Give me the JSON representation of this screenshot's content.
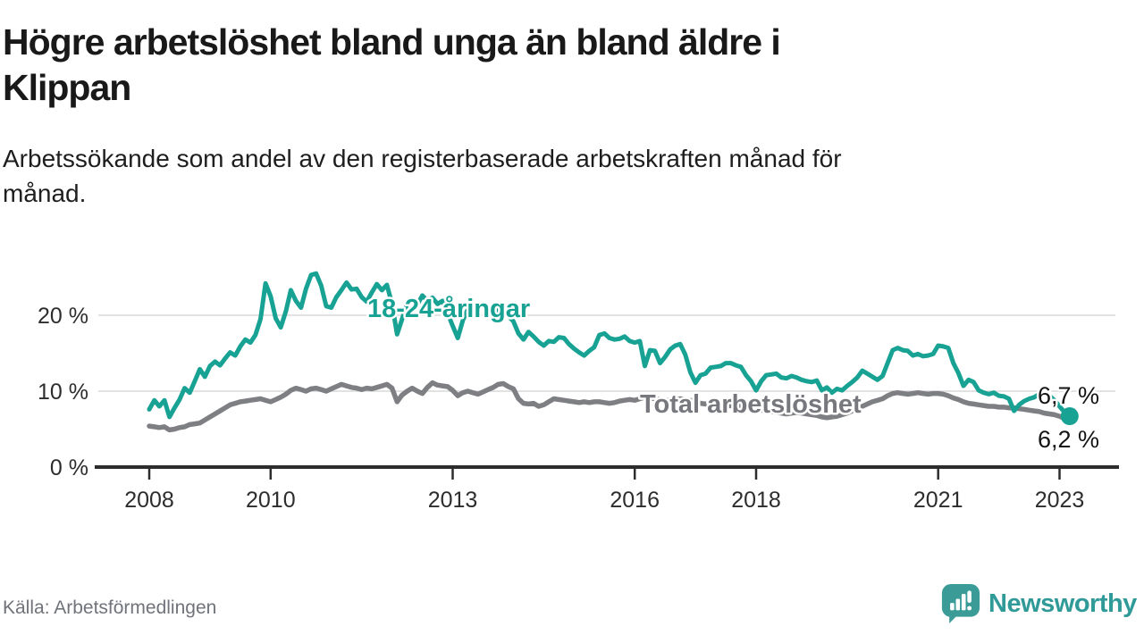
{
  "header": {
    "title": "Högre arbetslöshet bland unga än bland äldre i\nKlippan",
    "subtitle": "Arbetssökande som andel av den registerbaserade arbetskraften månad för\nmånad."
  },
  "footer": {
    "source": "Källa: Arbetsförmedlingen",
    "brand": "Newsworthy",
    "logo_icon": "newsworthy-speech-bubble-bar-chart-icon"
  },
  "colors": {
    "youth_line": "#17a294",
    "total_line": "#7e7f83",
    "total_label": "#77787d",
    "grid": "#d9d9d9",
    "axis": "#2d2d2d",
    "tick_text": "#2d2d2d",
    "end_label_text": "#141414",
    "title_text": "#191919",
    "muted_text": "#70737a",
    "brand_teal": "#2f9a98"
  },
  "chart_data": {
    "type": "line",
    "title": "Högre arbetslöshet bland unga än bland äldre i Klippan",
    "x_start": {
      "year": 2008,
      "month": 1
    },
    "frequency": "monthly",
    "x_ticks": [
      2008,
      2010,
      2013,
      2016,
      2018,
      2021,
      2023
    ],
    "y_ticks": [
      {
        "value": 0,
        "label": "0 %"
      },
      {
        "value": 10,
        "label": "10 %"
      },
      {
        "value": 20,
        "label": "20 %"
      }
    ],
    "ylim": [
      0,
      27.5
    ],
    "grid": true,
    "legend_position": "inline-labels",
    "series": [
      {
        "name": "18-24-åringar",
        "end_label": "6,7 %",
        "end_marker": true,
        "values": [
          7.6,
          8.8,
          8.0,
          8.8,
          6.6,
          7.8,
          8.9,
          10.4,
          9.8,
          11.3,
          12.9,
          11.9,
          13.3,
          13.9,
          13.4,
          14.3,
          15.1,
          14.7,
          15.9,
          16.8,
          16.4,
          17.4,
          19.5,
          24.2,
          22.5,
          19.6,
          18.4,
          20.5,
          23.3,
          21.9,
          21.0,
          23.5,
          25.3,
          25.5,
          23.9,
          21.2,
          21.0,
          22.4,
          23.3,
          24.3,
          23.4,
          23.5,
          22.4,
          21.8,
          23.0,
          24.1,
          23.3,
          24.0,
          21.5,
          17.5,
          19.5,
          21.6,
          21.9,
          21.4,
          22.6,
          21.9,
          22.3,
          21.5,
          21.9,
          20.3,
          18.6,
          17.0,
          19.3,
          20.8,
          20.4,
          21.0,
          21.3,
          20.7,
          21.2,
          20.6,
          20.9,
          19.9,
          19.2,
          17.6,
          16.8,
          17.8,
          17.2,
          16.5,
          16.0,
          16.6,
          16.5,
          17.1,
          17.0,
          16.2,
          15.6,
          15.1,
          14.7,
          15.3,
          15.8,
          17.4,
          17.6,
          17.0,
          16.8,
          16.9,
          17.2,
          16.6,
          16.4,
          16.6,
          13.3,
          15.4,
          15.3,
          13.7,
          14.5,
          15.5,
          16.0,
          16.2,
          14.8,
          12.5,
          11.1,
          12.1,
          12.3,
          13.1,
          13.2,
          13.3,
          13.7,
          13.7,
          13.4,
          13.2,
          12.1,
          11.3,
          10.1,
          11.3,
          12.1,
          12.2,
          12.3,
          11.8,
          11.7,
          12.0,
          11.8,
          11.5,
          11.3,
          11.2,
          11.4,
          10.1,
          10.5,
          9.8,
          10.3,
          10.1,
          10.7,
          11.2,
          11.8,
          12.7,
          12.3,
          11.9,
          11.5,
          12.0,
          13.7,
          15.4,
          15.7,
          15.4,
          15.3,
          14.7,
          14.9,
          14.6,
          14.7,
          14.9,
          16.0,
          15.9,
          15.7,
          13.7,
          12.4,
          10.7,
          11.5,
          11.2,
          10.1,
          9.8,
          9.6,
          9.8,
          9.4,
          9.3,
          9.0,
          7.4,
          8.2,
          8.7,
          9.0,
          9.2,
          9.6,
          9.9,
          9.4,
          8.8,
          8.0,
          7.2,
          6.7
        ]
      },
      {
        "name": "Total arbetslöshet",
        "end_label": "6,2 %",
        "end_marker": false,
        "values": [
          5.4,
          5.3,
          5.2,
          5.3,
          4.9,
          5.0,
          5.2,
          5.3,
          5.6,
          5.7,
          5.8,
          6.2,
          6.6,
          7.0,
          7.4,
          7.8,
          8.2,
          8.4,
          8.6,
          8.7,
          8.8,
          8.9,
          9.0,
          8.8,
          8.6,
          8.9,
          9.2,
          9.6,
          10.1,
          10.4,
          10.2,
          10.0,
          10.3,
          10.4,
          10.2,
          10.0,
          10.3,
          10.6,
          10.9,
          10.7,
          10.5,
          10.4,
          10.2,
          10.4,
          10.3,
          10.5,
          10.7,
          10.9,
          10.4,
          8.6,
          9.5,
          10.0,
          10.4,
          10.0,
          9.7,
          10.5,
          11.1,
          10.8,
          10.7,
          10.6,
          10.1,
          9.4,
          9.8,
          10.0,
          9.8,
          9.6,
          9.9,
          10.2,
          10.5,
          10.9,
          11.0,
          10.6,
          10.3,
          9.0,
          8.4,
          8.3,
          8.4,
          8.0,
          8.2,
          8.6,
          9.0,
          8.9,
          8.8,
          8.7,
          8.6,
          8.5,
          8.6,
          8.5,
          8.6,
          8.6,
          8.5,
          8.4,
          8.5,
          8.7,
          8.8,
          8.9,
          8.8,
          9.0,
          9.2,
          9.1,
          9.0,
          8.9,
          8.8,
          8.8,
          8.9,
          9.0,
          8.9,
          8.8,
          8.6,
          8.4,
          8.3,
          8.2,
          8.1,
          8.0,
          8.0,
          8.1,
          8.2,
          8.1,
          8.0,
          7.9,
          7.7,
          7.5,
          7.4,
          7.3,
          7.2,
          7.1,
          7.0,
          7.1,
          7.2,
          7.1,
          7.0,
          6.9,
          6.8,
          6.6,
          6.5,
          6.6,
          6.7,
          6.9,
          7.1,
          7.4,
          7.7,
          8.0,
          8.3,
          8.6,
          8.8,
          9.0,
          9.4,
          9.7,
          9.8,
          9.7,
          9.6,
          9.7,
          9.8,
          9.7,
          9.6,
          9.7,
          9.7,
          9.6,
          9.4,
          9.1,
          8.9,
          8.6,
          8.4,
          8.3,
          8.2,
          8.1,
          8.0,
          8.0,
          7.9,
          7.9,
          7.8,
          7.8,
          7.7,
          7.6,
          7.5,
          7.4,
          7.3,
          7.1,
          7.0,
          6.9,
          6.7,
          6.4,
          6.2
        ]
      }
    ]
  }
}
